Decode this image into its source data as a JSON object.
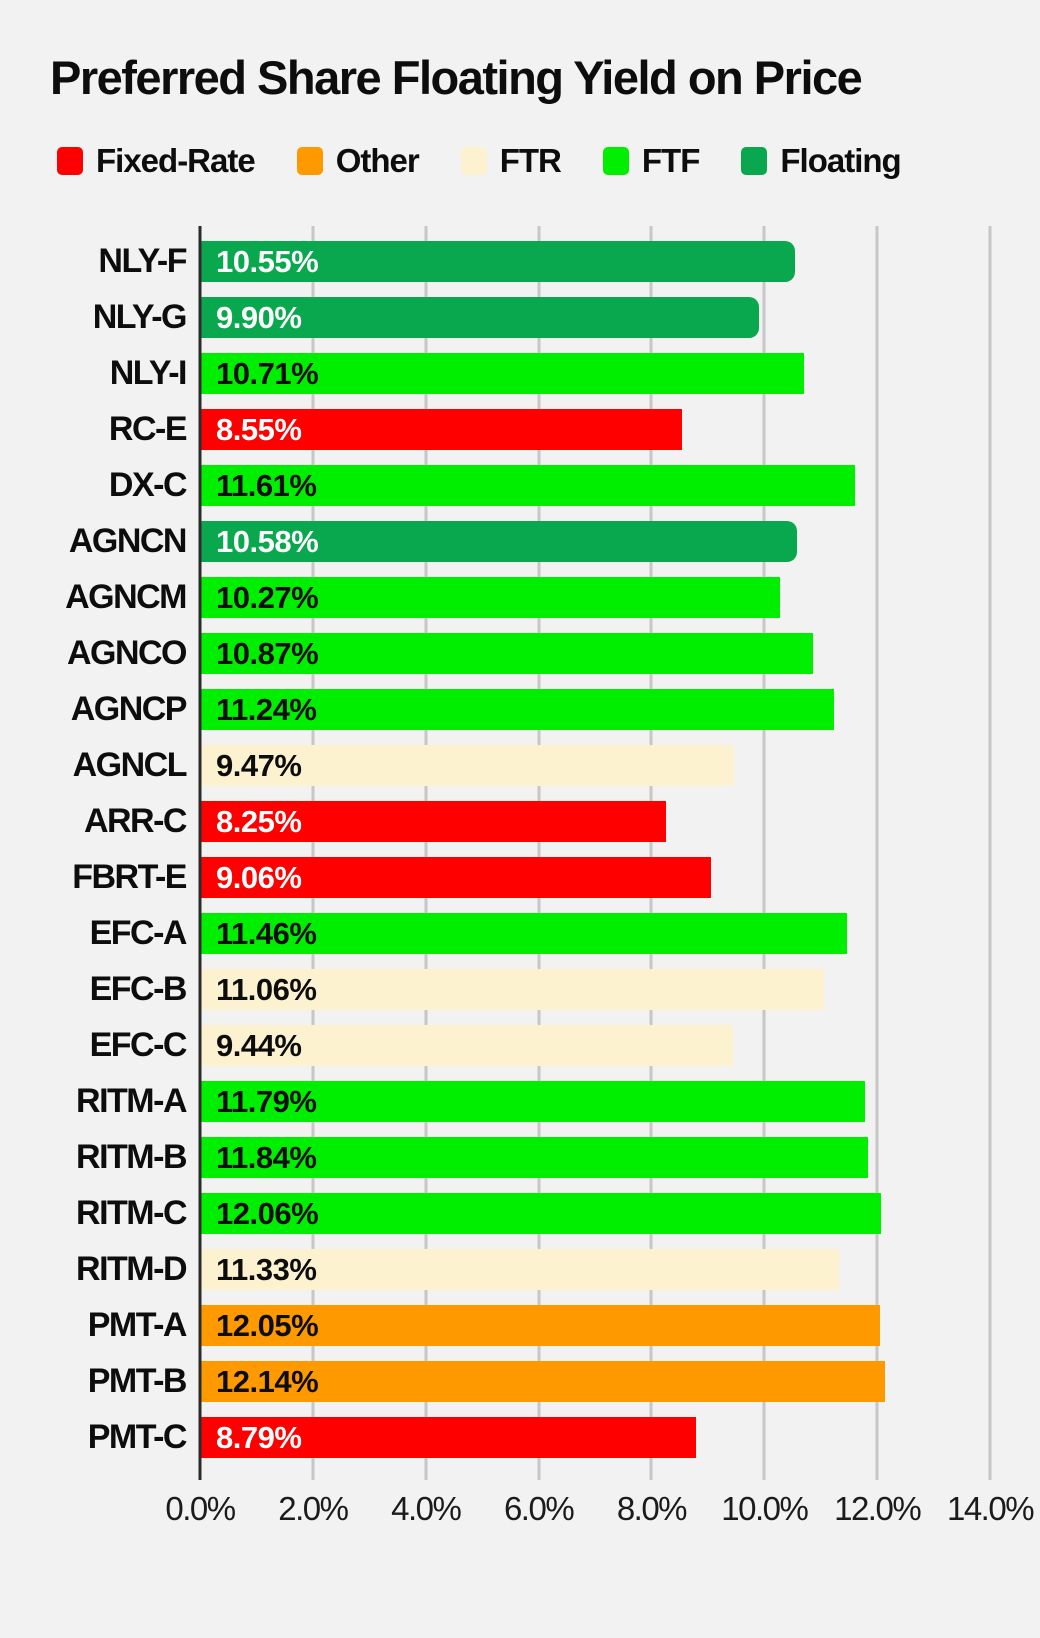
{
  "title": "Preferred Share Floating Yield on Price",
  "colors": {
    "background": "#f2f2f2",
    "gridline": "#c7c7c7",
    "axis": "#2b2b2b",
    "text": "#0d0d0d"
  },
  "legend": [
    {
      "label": "Fixed-Rate",
      "color": "#fe0000"
    },
    {
      "label": "Other",
      "color": "#fe9900"
    },
    {
      "label": "FTR",
      "color": "#fdf2cf"
    },
    {
      "label": "FTF",
      "color": "#00ee00"
    },
    {
      "label": "Floating",
      "color": "#0aa84e"
    }
  ],
  "chart_data": {
    "type": "bar",
    "orientation": "horizontal",
    "title": "Preferred Share Floating Yield on Price",
    "xlabel": "",
    "ylabel": "",
    "xlim": [
      0,
      14
    ],
    "grid": true,
    "legend_position": "top",
    "xticks": {
      "values": [
        0,
        2,
        4,
        6,
        8,
        10,
        12,
        14
      ],
      "labels": [
        "0.0%",
        "2.0%",
        "4.0%",
        "6.0%",
        "8.0%",
        "10.0%",
        "12.0%",
        "14.0%"
      ]
    },
    "category_colors": {
      "Fixed-Rate": "#fe0000",
      "Other": "#fe9900",
      "FTR": "#fdf2cf",
      "FTF": "#00ee00",
      "Floating": "#0aa84e"
    },
    "category_text_colors": {
      "Fixed-Rate": "#ffffff",
      "Other": "#0d0d0d",
      "FTR": "#0d0d0d",
      "FTF": "#0d0d0d",
      "Floating": "#ffffff"
    },
    "rounded_categories": [
      "Floating"
    ],
    "bars": [
      {
        "ticker": "NLY-F",
        "value": 10.55,
        "label": "10.55%",
        "category": "Floating"
      },
      {
        "ticker": "NLY-G",
        "value": 9.9,
        "label": "9.90%",
        "category": "Floating"
      },
      {
        "ticker": "NLY-I",
        "value": 10.71,
        "label": "10.71%",
        "category": "FTF"
      },
      {
        "ticker": "RC-E",
        "value": 8.55,
        "label": "8.55%",
        "category": "Fixed-Rate"
      },
      {
        "ticker": "DX-C",
        "value": 11.61,
        "label": "11.61%",
        "category": "FTF"
      },
      {
        "ticker": "AGNCN",
        "value": 10.58,
        "label": "10.58%",
        "category": "Floating"
      },
      {
        "ticker": "AGNCM",
        "value": 10.27,
        "label": "10.27%",
        "category": "FTF"
      },
      {
        "ticker": "AGNCO",
        "value": 10.87,
        "label": "10.87%",
        "category": "FTF"
      },
      {
        "ticker": "AGNCP",
        "value": 11.24,
        "label": "11.24%",
        "category": "FTF"
      },
      {
        "ticker": "AGNCL",
        "value": 9.47,
        "label": "9.47%",
        "category": "FTR"
      },
      {
        "ticker": "ARR-C",
        "value": 8.25,
        "label": "8.25%",
        "category": "Fixed-Rate"
      },
      {
        "ticker": "FBRT-E",
        "value": 9.06,
        "label": "9.06%",
        "category": "Fixed-Rate"
      },
      {
        "ticker": "EFC-A",
        "value": 11.46,
        "label": "11.46%",
        "category": "FTF"
      },
      {
        "ticker": "EFC-B",
        "value": 11.06,
        "label": "11.06%",
        "category": "FTR"
      },
      {
        "ticker": "EFC-C",
        "value": 9.44,
        "label": "9.44%",
        "category": "FTR"
      },
      {
        "ticker": "RITM-A",
        "value": 11.79,
        "label": "11.79%",
        "category": "FTF"
      },
      {
        "ticker": "RITM-B",
        "value": 11.84,
        "label": "11.84%",
        "category": "FTF"
      },
      {
        "ticker": "RITM-C",
        "value": 12.06,
        "label": "12.06%",
        "category": "FTF"
      },
      {
        "ticker": "RITM-D",
        "value": 11.33,
        "label": "11.33%",
        "category": "FTR"
      },
      {
        "ticker": "PMT-A",
        "value": 12.05,
        "label": "12.05%",
        "category": "Other"
      },
      {
        "ticker": "PMT-B",
        "value": 12.14,
        "label": "12.14%",
        "category": "Other"
      },
      {
        "ticker": "PMT-C",
        "value": 8.79,
        "label": "8.79%",
        "category": "Fixed-Rate"
      }
    ]
  }
}
